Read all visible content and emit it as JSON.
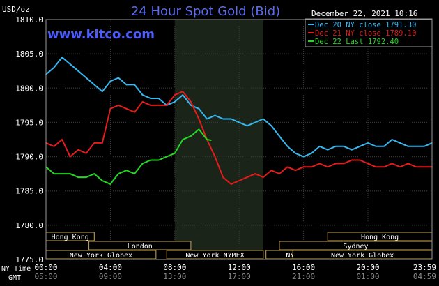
{
  "title": "24 Hour Spot Gold (Bid)",
  "watermark": "www.kitco.com",
  "date_label": "December 22, 2021 10:16",
  "y_unit_label": "USD/oz",
  "row_labels": {
    "ny_time": "NY Time",
    "gmt": "GMT"
  },
  "legend": [
    {
      "text": "Dec 20 NY close 1791.30",
      "color": "#36b7f0"
    },
    {
      "text": "Dec 21 NY close 1789.10",
      "color": "#e41c1c"
    },
    {
      "text": "Dec 22 Last 1792.40",
      "color": "#25d825"
    }
  ],
  "sessions": [
    {
      "label": "Hong Kong",
      "row": 0
    },
    {
      "label": "Hong Kong",
      "row": 0
    },
    {
      "label": "London",
      "row": 1
    },
    {
      "label": "Sydney",
      "row": 1
    },
    {
      "label": "New York Globex",
      "row": 2
    },
    {
      "label": "New York NYMEX",
      "row": 2
    },
    {
      "label": "NY Globex",
      "row": 2
    },
    {
      "label": "New York Globex",
      "row": 2
    }
  ],
  "chart_data": {
    "type": "line",
    "title": "24 Hour Spot Gold (Bid)",
    "ylabel": "USD/oz",
    "ylim": [
      1775.0,
      1810.0
    ],
    "y_ticks": [
      "1775.0",
      "1780.0",
      "1785.0",
      "1790.0",
      "1795.0",
      "1800.0",
      "1805.0",
      "1810.0"
    ],
    "x_ticks_ny": [
      "00:00",
      "04:00",
      "08:00",
      "12:00",
      "16:00",
      "20:00",
      "23:59"
    ],
    "x_ticks_gmt": [
      "05:00",
      "09:00",
      "13:00",
      "17:00",
      "21:00",
      "01:00",
      "04:59"
    ],
    "grid": true,
    "legend_position": "top-right",
    "series": [
      {
        "name": "Dec 20 NY close 1791.30",
        "color": "#36b7f0",
        "x": [
          "00:00",
          "00:30",
          "01:00",
          "01:30",
          "02:00",
          "02:30",
          "03:00",
          "03:30",
          "04:00",
          "04:30",
          "05:00",
          "05:30",
          "06:00",
          "06:30",
          "07:00",
          "07:30",
          "08:00",
          "08:30",
          "09:00",
          "09:30",
          "10:00",
          "10:30",
          "11:00",
          "11:30",
          "12:00",
          "12:30",
          "13:00",
          "13:30",
          "14:00",
          "14:30",
          "15:00",
          "15:30",
          "16:00",
          "16:30",
          "17:00",
          "17:30",
          "18:00",
          "18:30",
          "19:00",
          "19:30",
          "20:00",
          "20:30",
          "21:00",
          "21:30",
          "22:00",
          "22:30",
          "23:00",
          "23:30",
          "23:59"
        ],
        "values": [
          1802.0,
          1803.0,
          1804.5,
          1803.5,
          1802.5,
          1801.5,
          1800.5,
          1799.5,
          1801.0,
          1801.5,
          1800.5,
          1800.5,
          1799.0,
          1798.5,
          1798.5,
          1797.5,
          1798.0,
          1799.0,
          1797.5,
          1797.0,
          1795.5,
          1796.0,
          1795.5,
          1795.5,
          1795.0,
          1794.5,
          1795.0,
          1795.5,
          1794.5,
          1793.0,
          1791.5,
          1790.5,
          1790.0,
          1790.5,
          1791.5,
          1791.0,
          1791.5,
          1791.5,
          1791.0,
          1791.5,
          1792.0,
          1791.5,
          1791.5,
          1792.5,
          1792.0,
          1791.5,
          1791.5,
          1791.5,
          1792.0
        ]
      },
      {
        "name": "Dec 21 NY close 1789.10",
        "color": "#e41c1c",
        "x": [
          "00:00",
          "00:30",
          "01:00",
          "01:30",
          "02:00",
          "02:30",
          "03:00",
          "03:30",
          "04:00",
          "04:30",
          "05:00",
          "05:30",
          "06:00",
          "06:30",
          "07:00",
          "07:30",
          "08:00",
          "08:30",
          "09:00",
          "09:30",
          "10:00",
          "10:30",
          "11:00",
          "11:30",
          "12:00",
          "12:30",
          "13:00",
          "13:30",
          "14:00",
          "14:30",
          "15:00",
          "15:30",
          "16:00",
          "16:30",
          "17:00",
          "17:30",
          "18:00",
          "18:30",
          "19:00",
          "19:30",
          "20:00",
          "20:30",
          "21:00",
          "21:30",
          "22:00",
          "22:30",
          "23:00",
          "23:30",
          "23:59"
        ],
        "values": [
          1792.0,
          1791.5,
          1792.5,
          1790.0,
          1791.0,
          1790.5,
          1792.0,
          1792.0,
          1797.0,
          1797.5,
          1797.0,
          1796.5,
          1798.0,
          1797.5,
          1797.5,
          1797.5,
          1799.0,
          1799.5,
          1798.0,
          1795.5,
          1792.5,
          1790.0,
          1787.0,
          1786.0,
          1786.5,
          1787.0,
          1787.5,
          1787.0,
          1788.0,
          1787.5,
          1788.5,
          1788.0,
          1788.5,
          1788.5,
          1789.0,
          1788.5,
          1789.0,
          1789.0,
          1789.5,
          1789.5,
          1789.0,
          1788.5,
          1788.5,
          1789.0,
          1788.5,
          1789.0,
          1788.5,
          1788.5,
          1788.5
        ]
      },
      {
        "name": "Dec 22 Last 1792.40",
        "color": "#25d825",
        "x": [
          "00:00",
          "00:30",
          "01:00",
          "01:30",
          "02:00",
          "02:30",
          "03:00",
          "03:30",
          "04:00",
          "04:30",
          "05:00",
          "05:30",
          "06:00",
          "06:30",
          "07:00",
          "07:30",
          "08:00",
          "08:30",
          "09:00",
          "09:30",
          "10:00",
          "10:15"
        ],
        "values": [
          1788.5,
          1787.5,
          1787.5,
          1787.5,
          1787.0,
          1787.0,
          1787.5,
          1786.5,
          1786.0,
          1787.5,
          1788.0,
          1787.5,
          1789.0,
          1789.5,
          1789.5,
          1790.0,
          1790.5,
          1792.5,
          1793.0,
          1794.0,
          1792.5,
          1792.4
        ]
      }
    ]
  }
}
